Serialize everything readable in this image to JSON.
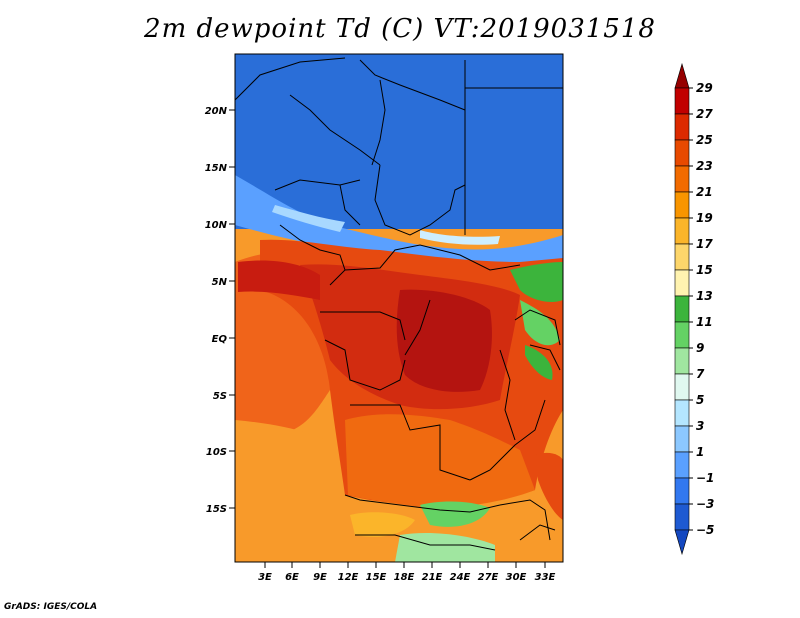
{
  "title": "2m dewpoint Td (C) VT:2019031518",
  "credit": "GrADS: IGES/COLA",
  "map": {
    "lat_labels": [
      "20N",
      "15N",
      "10N",
      "5N",
      "EQ",
      "5S",
      "10S",
      "15S"
    ],
    "lon_labels": [
      "3E",
      "6E",
      "9E",
      "12E",
      "15E",
      "18E",
      "21E",
      "24E",
      "27E",
      "30E",
      "33E"
    ]
  },
  "colorbar": {
    "labels": [
      "29",
      "27",
      "25",
      "23",
      "21",
      "19",
      "17",
      "15",
      "13",
      "11",
      "9",
      "7",
      "5",
      "3",
      "1",
      "−1",
      "−3",
      "−5"
    ],
    "colors": [
      "#960000",
      "#c10000",
      "#dc2a00",
      "#e84a00",
      "#f26b00",
      "#f89500",
      "#fbb52a",
      "#fdd66b",
      "#fff3b0",
      "#3cb43c",
      "#64d264",
      "#a0e6a0",
      "#e0f8f0",
      "#b4e6ff",
      "#8cc8ff",
      "#5aa0ff",
      "#3278f0",
      "#1e5ad2",
      "#1448c0"
    ]
  },
  "colors": {
    "ocean_warm": "#f06a10",
    "land_hot": "#d63010",
    "north_dry": "#2a6ed8",
    "border": "#000000"
  }
}
